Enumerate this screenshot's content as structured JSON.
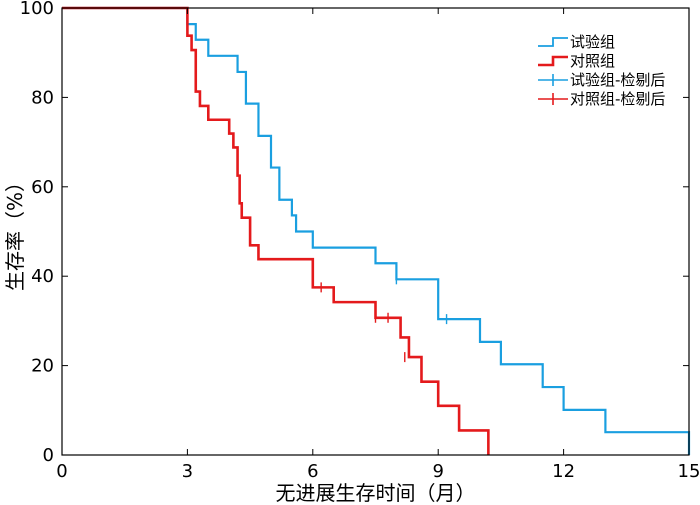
{
  "chart_data": {
    "type": "line",
    "xlabel": "无进展生存时间（月）",
    "ylabel": "生存率（%）",
    "xlim": [
      0,
      15
    ],
    "ylim": [
      0,
      100
    ],
    "x_ticks": [
      "0",
      "3",
      "6",
      "9",
      "12",
      "15"
    ],
    "y_ticks": [
      "0",
      "20",
      "40",
      "60",
      "80",
      "100"
    ],
    "legend_placement": "top-right",
    "legend": [
      "试验组",
      "对照组",
      "试验组-检剔后",
      "对照组-检剔后"
    ],
    "series": [
      {
        "name": "试验组",
        "color": "#1a9fe0",
        "steps": [
          [
            0,
            100
          ],
          [
            3,
            96.4
          ],
          [
            3.2,
            92.9
          ],
          [
            3.5,
            89.3
          ],
          [
            4.2,
            85.7
          ],
          [
            4.4,
            78.6
          ],
          [
            4.7,
            71.4
          ],
          [
            5.0,
            64.3
          ],
          [
            5.2,
            57.1
          ],
          [
            5.5,
            53.6
          ],
          [
            5.6,
            50.0
          ],
          [
            6.0,
            46.4
          ],
          [
            7.5,
            42.9
          ],
          [
            8.0,
            39.3
          ],
          [
            9.0,
            30.4
          ],
          [
            10.0,
            25.3
          ],
          [
            10.5,
            20.3
          ],
          [
            11.5,
            15.2
          ],
          [
            12.0,
            10.1
          ],
          [
            13.0,
            5.1
          ],
          [
            15.0,
            0
          ]
        ],
        "censored": [
          [
            8.0,
            39.3
          ],
          [
            9.2,
            30.4
          ]
        ]
      },
      {
        "name": "对照组",
        "color": "#e41a1c",
        "steps": [
          [
            0,
            100
          ],
          [
            3,
            93.8
          ],
          [
            3.1,
            90.6
          ],
          [
            3.2,
            81.3
          ],
          [
            3.3,
            78.1
          ],
          [
            3.5,
            75.0
          ],
          [
            4.0,
            71.9
          ],
          [
            4.1,
            68.8
          ],
          [
            4.2,
            62.5
          ],
          [
            4.25,
            56.3
          ],
          [
            4.3,
            53.1
          ],
          [
            4.5,
            46.9
          ],
          [
            4.7,
            43.8
          ],
          [
            6.0,
            37.5
          ],
          [
            6.5,
            34.2
          ],
          [
            7.5,
            30.7
          ],
          [
            8.1,
            26.3
          ],
          [
            8.3,
            21.9
          ],
          [
            8.6,
            16.4
          ],
          [
            9.0,
            11.0
          ],
          [
            9.5,
            5.5
          ],
          [
            10.2,
            0
          ]
        ],
        "censored": [
          [
            6.2,
            37.5
          ],
          [
            7.5,
            30.7
          ],
          [
            7.8,
            30.7
          ],
          [
            8.2,
            21.9
          ]
        ]
      }
    ]
  }
}
